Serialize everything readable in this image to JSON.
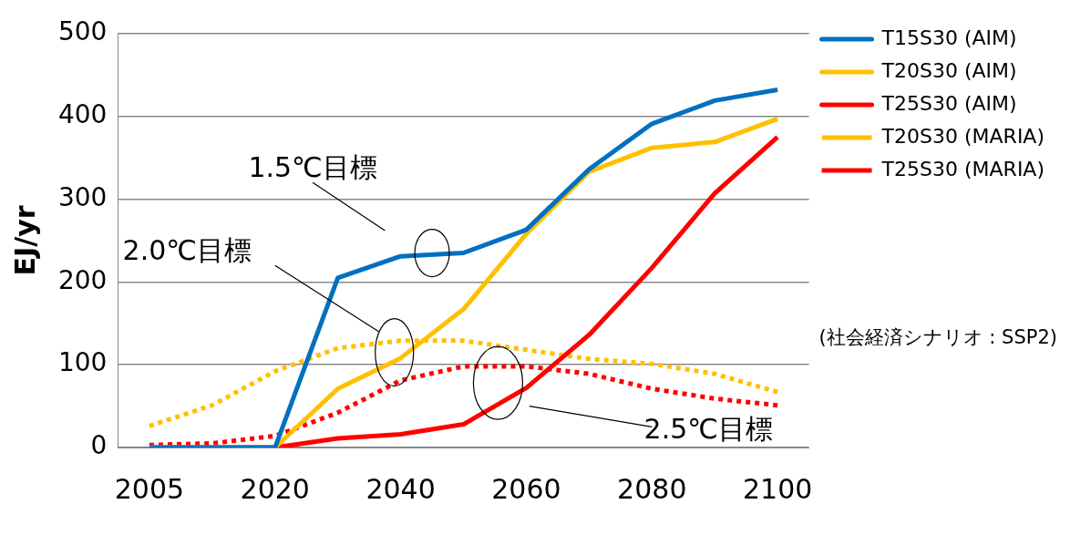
{
  "chart_data": {
    "type": "line",
    "ylabel": "EJ/yr",
    "categories": [
      "2005",
      null,
      "2020",
      null,
      "2040",
      null,
      "2060",
      null,
      "2080",
      null,
      "2100"
    ],
    "ylim": [
      0,
      500
    ],
    "yticks": [
      0,
      100,
      200,
      300,
      400,
      500
    ],
    "grid": "y",
    "legend": "right",
    "marker": "none",
    "series": [
      {
        "name": "T15S30 (AIM)",
        "color": "#0070c0",
        "line_style": "solid",
        "values": [
          0,
          0,
          0,
          205,
          231,
          235,
          263,
          336,
          391,
          419,
          432
        ]
      },
      {
        "name": "T20S30 (AIM)",
        "color": "#ffc000",
        "line_style": "solid",
        "values": [
          0,
          0,
          0,
          71,
          108,
          167,
          258,
          333,
          362,
          369,
          397
        ]
      },
      {
        "name": "T25S30 (AIM)",
        "color": "#ff0000",
        "line_style": "solid",
        "values": [
          0,
          0,
          0,
          11,
          16,
          28,
          72,
          136,
          217,
          307,
          375
        ]
      },
      {
        "name": "T20S30 (MARIA)",
        "color": "#ffc000",
        "line_style": "dotted",
        "values": [
          26,
          51,
          92,
          120,
          129,
          129,
          118,
          107,
          101,
          89,
          67
        ]
      },
      {
        "name": "T25S30 (MARIA)",
        "color": "#ff0000",
        "line_style": "dotted",
        "values": [
          3,
          5,
          14,
          42,
          81,
          98,
          98,
          89,
          71,
          59,
          51
        ]
      }
    ],
    "annotations": [
      "1.5℃目標",
      "2.0℃目標",
      "2.5℃目標",
      "(社会経済シナリオ : SSP2)"
    ]
  }
}
